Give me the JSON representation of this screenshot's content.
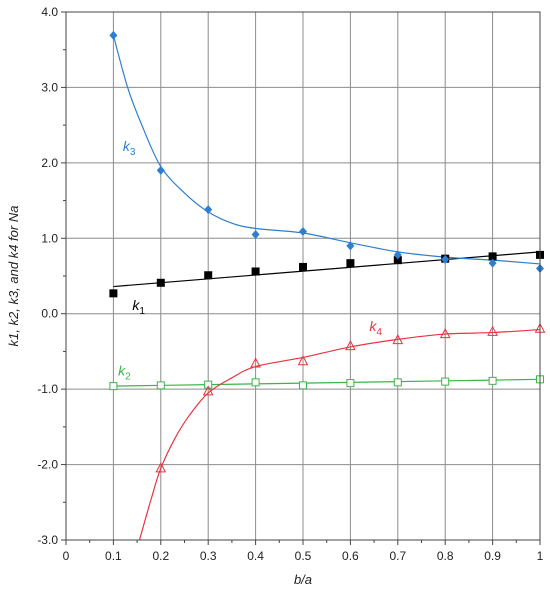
{
  "chart_data": {
    "type": "scatter",
    "xlabel": "b/a",
    "ylabel": "k1, k2, k3, and k4 for Na",
    "xlim": [
      0,
      1
    ],
    "ylim": [
      -3,
      4
    ],
    "xticks": [
      0,
      0.1,
      0.2,
      0.3,
      0.4,
      0.5,
      0.6,
      0.7,
      0.8,
      0.9,
      1
    ],
    "xtick_labels": [
      "0",
      "0.1",
      "0.2",
      "0.3",
      "0.4",
      "0.5",
      "0.6",
      "0.7",
      "0.8",
      "0.9",
      "1"
    ],
    "yticks": [
      -3,
      -2,
      -1,
      0,
      1,
      2,
      3,
      4
    ],
    "ytick_labels": [
      "-3.0",
      "-2.0",
      "-1.0",
      "0.0",
      "1.0",
      "2.0",
      "3.0",
      "4.0"
    ],
    "grid": true,
    "legend": "none",
    "series": [
      {
        "name": "k1",
        "label_sub": "1",
        "color": "#000000",
        "marker": "square-filled",
        "x": [
          0.1,
          0.2,
          0.3,
          0.4,
          0.5,
          0.6,
          0.7,
          0.8,
          0.9,
          1.0
        ],
        "y": [
          0.27,
          0.41,
          0.51,
          0.56,
          0.62,
          0.67,
          0.71,
          0.73,
          0.76,
          0.78
        ],
        "fit": [
          [
            0.1,
            0.36
          ],
          [
            1.0,
            0.82
          ]
        ]
      },
      {
        "name": "k2",
        "label_sub": "2",
        "color": "#3cb44b",
        "marker": "square-open",
        "x": [
          0.1,
          0.2,
          0.3,
          0.4,
          0.5,
          0.6,
          0.7,
          0.8,
          0.9,
          1.0
        ],
        "y": [
          -0.96,
          -0.95,
          -0.94,
          -0.91,
          -0.95,
          -0.92,
          -0.91,
          -0.9,
          -0.89,
          -0.87
        ],
        "fit": [
          [
            0.1,
            -0.96
          ],
          [
            0.3,
            -0.94
          ],
          [
            0.5,
            -0.92
          ],
          [
            0.7,
            -0.9
          ],
          [
            0.9,
            -0.88
          ],
          [
            1.0,
            -0.87
          ]
        ]
      },
      {
        "name": "k3",
        "label_sub": "3",
        "color": "#2e7fd0",
        "marker": "diamond-filled",
        "x": [
          0.1,
          0.2,
          0.3,
          0.4,
          0.5,
          0.6,
          0.7,
          0.8,
          0.9,
          1.0
        ],
        "y": [
          3.69,
          1.9,
          1.38,
          1.05,
          1.09,
          0.9,
          0.78,
          0.72,
          0.67,
          0.6
        ],
        "fit": [
          [
            0.1,
            3.69
          ],
          [
            0.13,
            3.0
          ],
          [
            0.16,
            2.5
          ],
          [
            0.2,
            1.95
          ],
          [
            0.25,
            1.6
          ],
          [
            0.3,
            1.35
          ],
          [
            0.35,
            1.2
          ],
          [
            0.4,
            1.13
          ],
          [
            0.5,
            1.07
          ],
          [
            0.6,
            0.94
          ],
          [
            0.7,
            0.82
          ],
          [
            0.8,
            0.75
          ],
          [
            0.9,
            0.71
          ],
          [
            1.0,
            0.66
          ]
        ]
      },
      {
        "name": "k4",
        "label_sub": "4",
        "color": "#e8343f",
        "marker": "triangle-open",
        "x": [
          0.2,
          0.3,
          0.4,
          0.5,
          0.6,
          0.7,
          0.8,
          0.9,
          1.0
        ],
        "y": [
          -2.05,
          -1.03,
          -0.66,
          -0.63,
          -0.43,
          -0.35,
          -0.27,
          -0.24,
          -0.2
        ],
        "fit": [
          [
            0.155,
            -3.0
          ],
          [
            0.18,
            -2.45
          ],
          [
            0.2,
            -2.05
          ],
          [
            0.23,
            -1.65
          ],
          [
            0.26,
            -1.35
          ],
          [
            0.3,
            -1.05
          ],
          [
            0.35,
            -0.85
          ],
          [
            0.4,
            -0.7
          ],
          [
            0.5,
            -0.58
          ],
          [
            0.6,
            -0.44
          ],
          [
            0.7,
            -0.34
          ],
          [
            0.8,
            -0.27
          ],
          [
            0.9,
            -0.25
          ],
          [
            1.0,
            -0.21
          ]
        ]
      }
    ],
    "annotations": [
      {
        "series": "k1",
        "x": 0.14,
        "y": 0.05
      },
      {
        "series": "k2",
        "x": 0.11,
        "y": -0.82
      },
      {
        "series": "k3",
        "x": 0.12,
        "y": 2.16
      },
      {
        "series": "k4",
        "x": 0.64,
        "y": -0.23
      }
    ]
  }
}
